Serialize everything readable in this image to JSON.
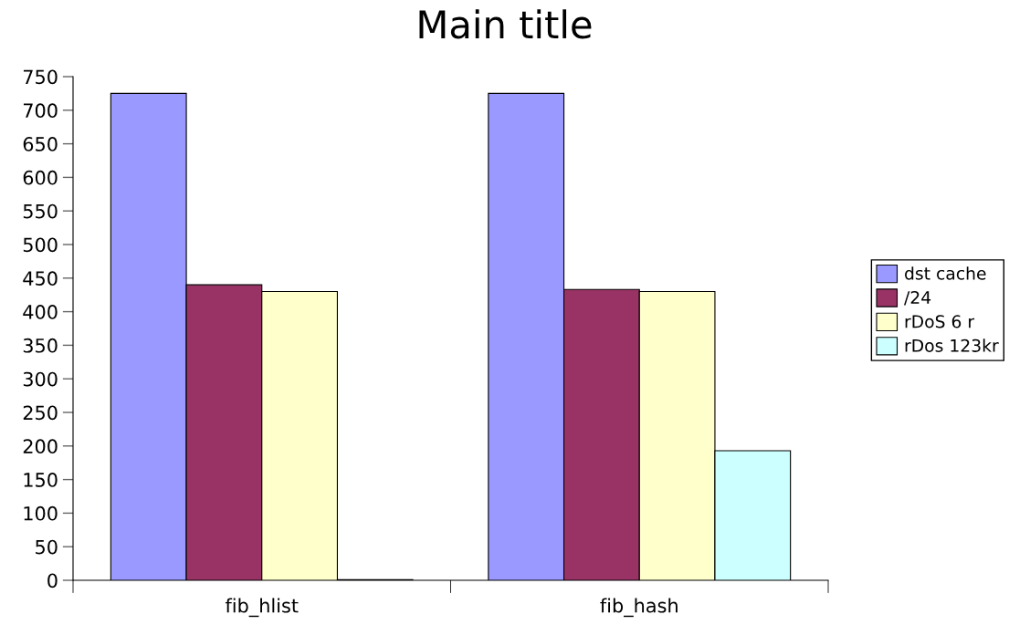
{
  "chart_data": {
    "type": "bar",
    "title": "Main title",
    "categories": [
      "fib_hlist",
      "fib_hash"
    ],
    "series": [
      {
        "name": "dst cache",
        "color": "#9999ff",
        "values": [
          725,
          725
        ]
      },
      {
        "name": "/24",
        "color": "#993366",
        "values": [
          440,
          433
        ]
      },
      {
        "name": "rDoS 6 r",
        "color": "#ffffcc",
        "values": [
          430,
          430
        ]
      },
      {
        "name": "rDos 123kr",
        "color": "#ccffff",
        "values": [
          1,
          193
        ]
      }
    ],
    "ylim": [
      0,
      750
    ],
    "yticks": [
      0,
      50,
      100,
      150,
      200,
      250,
      300,
      350,
      400,
      450,
      500,
      550,
      600,
      650,
      700,
      750
    ],
    "grid": false,
    "legend": "right"
  }
}
